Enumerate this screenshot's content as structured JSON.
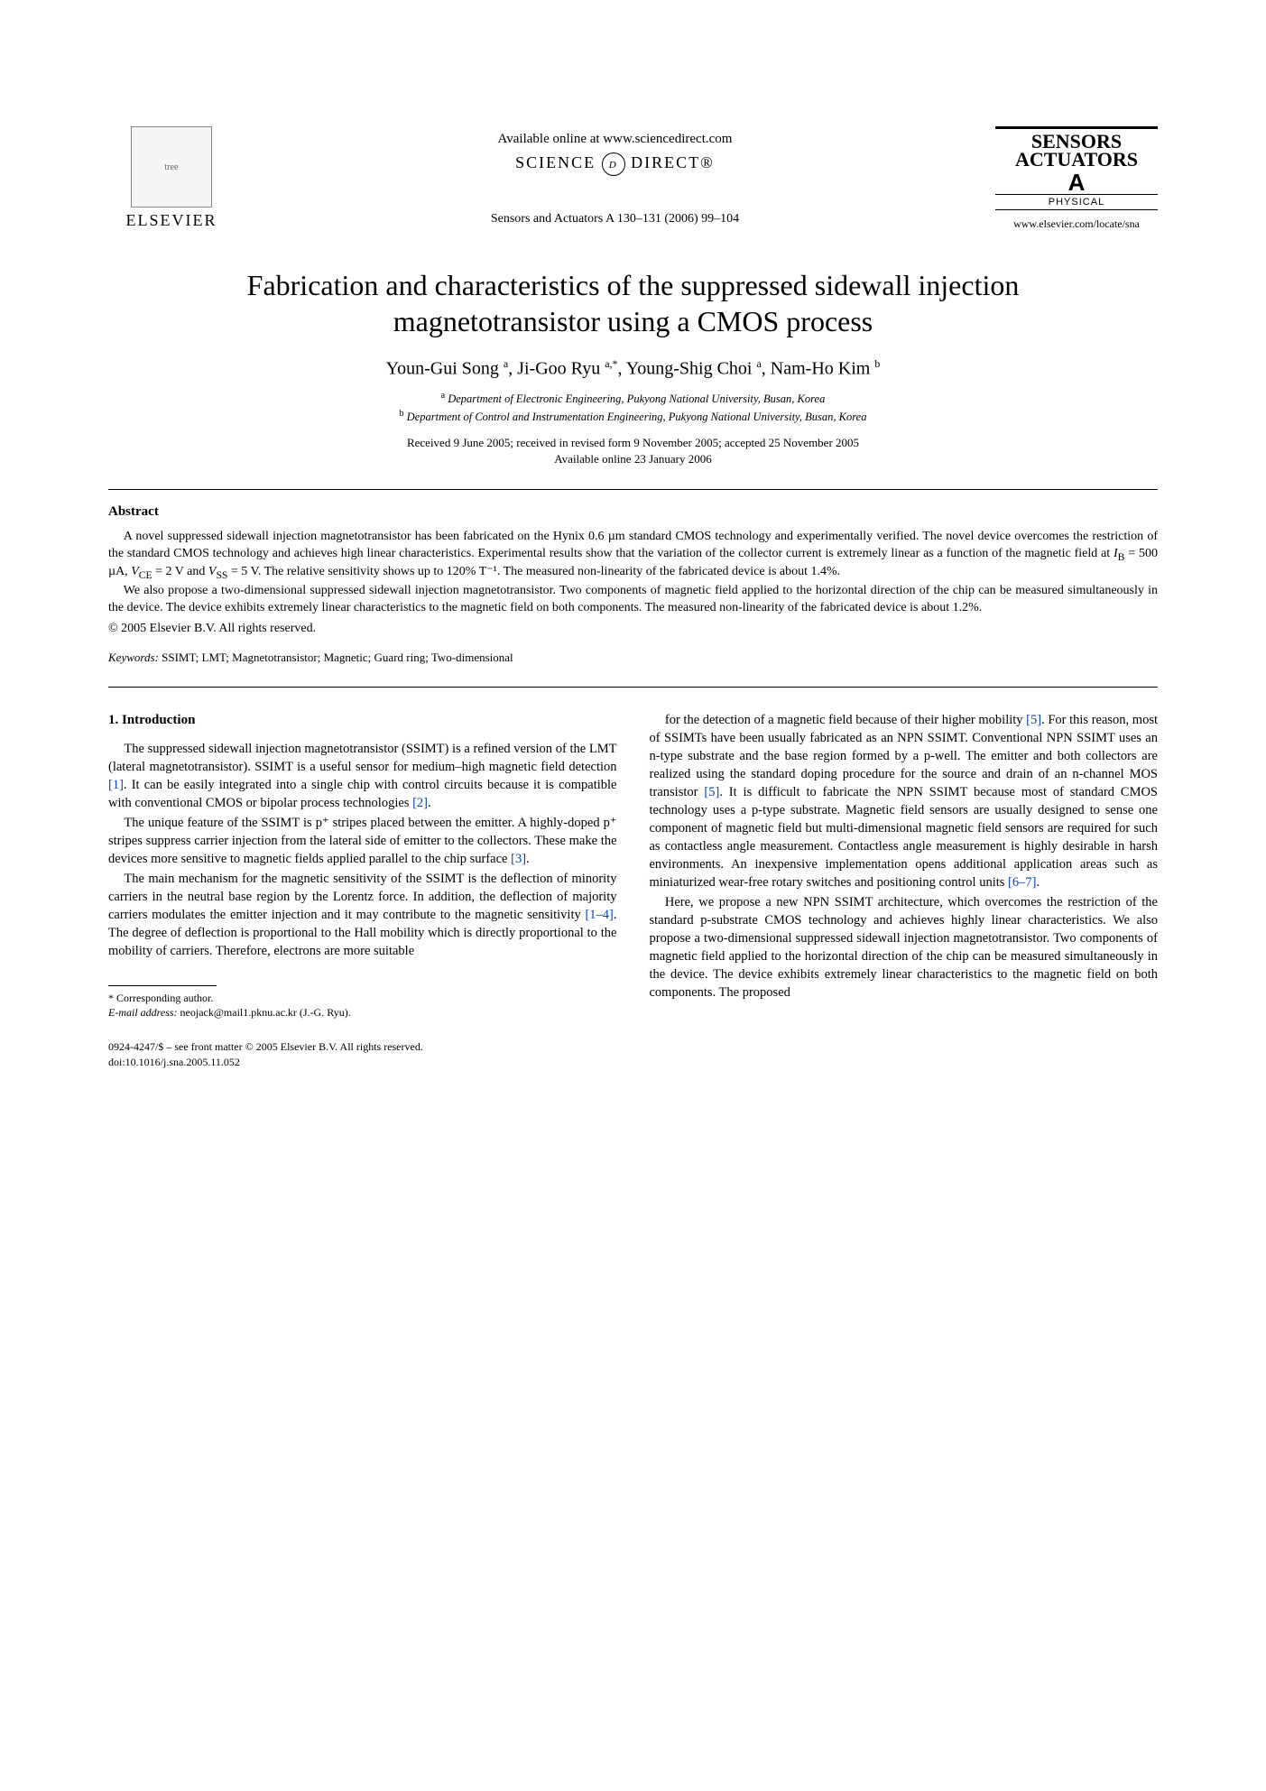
{
  "header": {
    "publisher": "ELSEVIER",
    "publisher_logo_alt": "tree",
    "available_online": "Available online at www.sciencedirect.com",
    "sciencedirect_left": "SCIENCE",
    "sciencedirect_glyph": "d",
    "sciencedirect_right": "DIRECT®",
    "journal_ref": "Sensors and Actuators A 130–131 (2006) 99–104",
    "journal_box_line1": "SENSORS",
    "journal_box_line2": "ACTUATORS",
    "journal_box_a": "A",
    "journal_box_phys": "PHYSICAL",
    "journal_url": "www.elsevier.com/locate/sna"
  },
  "title": "Fabrication and characteristics of the suppressed sidewall injection magnetotransistor using a CMOS process",
  "authors_html": "Youn-Gui Song <sup>a</sup>, Ji-Goo Ryu <sup>a,*</sup>, Young-Shig Choi <sup>a</sup>, Nam-Ho Kim <sup>b</sup>",
  "affiliations": {
    "a": "Department of Electronic Engineering, Pukyong National University, Busan, Korea",
    "b": "Department of Control and Instrumentation Engineering, Pukyong National University, Busan, Korea"
  },
  "dates_line1": "Received 9 June 2005; received in revised form 9 November 2005; accepted 25 November 2005",
  "dates_line2": "Available online 23 January 2006",
  "abstract": {
    "heading": "Abstract",
    "p1": "A novel suppressed sidewall injection magnetotransistor has been fabricated on the Hynix 0.6 µm standard CMOS technology and experimentally verified. The novel device overcomes the restriction of the standard CMOS technology and achieves high linear characteristics. Experimental results show that the variation of the collector current is extremely linear as a function of the magnetic field at IB = 500 µA, VCE = 2 V and VSS = 5 V. The relative sensitivity shows up to 120% T⁻¹. The measured non-linearity of the fabricated device is about 1.4%.",
    "p2": "We also propose a two-dimensional suppressed sidewall injection magnetotransistor. Two components of magnetic field applied to the horizontal direction of the chip can be measured simultaneously in the device. The device exhibits extremely linear characteristics to the magnetic field on both components. The measured non-linearity of the fabricated device is about 1.2%.",
    "copyright": "© 2005 Elsevier B.V. All rights reserved."
  },
  "keywords": {
    "label": "Keywords:",
    "text": "SSIMT; LMT; Magnetotransistor; Magnetic; Guard ring; Two-dimensional"
  },
  "section1": {
    "heading": "1.  Introduction",
    "left_p1": "The suppressed sidewall injection magnetotransistor (SSIMT) is a refined version of the LMT (lateral magnetotransistor). SSIMT is a useful sensor for medium–high magnetic field detection [1]. It can be easily integrated into a single chip with control circuits because it is compatible with conventional CMOS or bipolar process technologies [2].",
    "left_p2": "The unique feature of the SSIMT is p⁺ stripes placed between the emitter. A highly-doped p⁺ stripes suppress carrier injection from the lateral side of emitter to the collectors. These make the devices more sensitive to magnetic fields applied parallel to the chip surface [3].",
    "left_p3": "The main mechanism for the magnetic sensitivity of the SSIMT is the deflection of minority carriers in the neutral base region by the Lorentz force. In addition, the deflection of majority carriers modulates the emitter injection and it may contribute to the magnetic sensitivity [1–4]. The degree of deflection is proportional to the Hall mobility which is directly proportional to the mobility of carriers. Therefore, electrons are more suitable",
    "right_p1": "for the detection of a magnetic field because of their higher mobility [5]. For this reason, most of SSIMTs have been usually fabricated as an NPN SSIMT. Conventional NPN SSIMT uses an n-type substrate and the base region formed by a p-well. The emitter and both collectors are realized using the standard doping procedure for the source and drain of an n-channel MOS transistor [5]. It is difficult to fabricate the NPN SSIMT because most of standard CMOS technology uses a p-type substrate. Magnetic field sensors are usually designed to sense one component of magnetic field but multi-dimensional magnetic field sensors are required for such as contactless angle measurement. Contactless angle measurement is highly desirable in harsh environments. An inexpensive implementation opens additional application areas such as miniaturized wear-free rotary switches and positioning control units [6–7].",
    "right_p2": "Here, we propose a new NPN SSIMT architecture, which overcomes the restriction of the standard p-substrate CMOS technology and achieves highly linear characteristics. We also propose a two-dimensional suppressed sidewall injection magnetotransistor. Two components of magnetic field applied to the horizontal direction of the chip can be measured simultaneously in the device. The device exhibits extremely linear characteristics to the magnetic field on both components. The proposed"
  },
  "footnote": {
    "corr": "* Corresponding author.",
    "email_label": "E-mail address:",
    "email": "neojack@mail1.pknu.ac.kr (J.-G. Ryu)."
  },
  "footer": {
    "line1": "0924-4247/$ – see front matter © 2005 Elsevier B.V. All rights reserved.",
    "line2": "doi:10.1016/j.sna.2005.11.052"
  },
  "refs": {
    "r1": "[1]",
    "r2": "[2]",
    "r3": "[3]",
    "r1_4": "[1–4]",
    "r5": "[5]",
    "r6_7": "[6–7]"
  }
}
